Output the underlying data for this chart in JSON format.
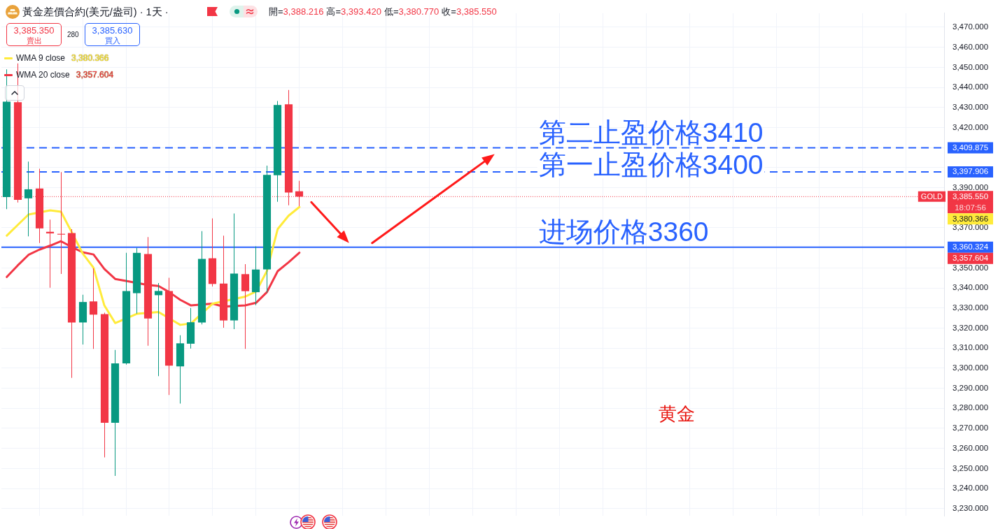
{
  "chart_data": {
    "type": "candlestick",
    "title": "黃金差價合約(美元/盎司) · 1天 ·",
    "subtitle": "開=3,388.216 高=3,393.420 低=3,380.770 收=3,385.550",
    "annotations": [
      "3,385.350",
      "賣出",
      "280",
      "3,385.630",
      "買入",
      "3,380.366",
      "3,357.604",
      "3,409.875",
      "3,397.906",
      "3,385.550",
      "18:07:56",
      "3,380.366",
      "3,360.324",
      "3,357.604",
      "黄金"
    ],
    "categories": [
      null,
      null,
      null,
      null,
      null,
      null,
      null,
      null,
      null,
      null,
      null,
      null,
      null,
      null,
      null,
      null,
      null,
      null,
      null,
      null,
      null,
      null,
      null,
      null,
      null,
      null,
      null,
      null,
      null,
      null,
      null,
      null,
      null,
      null,
      null,
      null,
      null,
      null,
      null,
      null,
      null,
      null,
      null,
      null,
      null,
      null,
      null,
      null,
      null,
      null,
      null,
      null,
      null,
      null,
      null,
      null,
      null,
      null,
      null,
      null,
      null,
      null,
      null,
      null,
      null,
      null,
      null,
      null,
      null,
      null,
      null,
      null,
      null,
      null,
      null,
      null,
      null,
      null,
      null,
      null,
      null,
      null,
      null,
      null,
      null,
      null,
      null
    ],
    "ohlc": [
      [
        3385.3,
        3449.0,
        3379.3,
        3432.9
      ],
      [
        3432.6,
        3452.0,
        3382.6,
        3383.9
      ],
      [
        3384.7,
        3403.0,
        3365.7,
        3389.2
      ],
      [
        3389.6,
        3399.4,
        3362.4,
        3369.7
      ],
      [
        3368.0,
        3374.1,
        3340.1,
        3367.2
      ],
      [
        3367.0,
        3397.8,
        3347.0,
        3366.6
      ],
      [
        3367.4,
        3369.3,
        3295.2,
        3322.8
      ],
      [
        3322.8,
        3336.6,
        3311.8,
        3333.0
      ],
      [
        3333.3,
        3349.8,
        3309.6,
        3326.7
      ],
      [
        3327.0,
        3327.7,
        3255.5,
        3272.8
      ],
      [
        3272.8,
        3309.1,
        3246.3,
        3302.4
      ],
      [
        3302.4,
        3357.5,
        3301.8,
        3338.5
      ],
      [
        3337.4,
        3360.0,
        3327.2,
        3357.5
      ],
      [
        3356.9,
        3365.4,
        3311.2,
        3324.8
      ],
      [
        3336.4,
        3342.5,
        3296.0,
        3338.5
      ],
      [
        3338.5,
        3345.1,
        3286.6,
        3301.3
      ],
      [
        3300.9,
        3316.4,
        3282.4,
        3312.4
      ],
      [
        3312.2,
        3330.0,
        3309.8,
        3322.9
      ],
      [
        3322.8,
        3368.3,
        3321.8,
        3354.5
      ],
      [
        3354.8,
        3374.7,
        3340.7,
        3342.0
      ],
      [
        3342.2,
        3366.1,
        3320.2,
        3323.8
      ],
      [
        3323.8,
        3377.1,
        3319.5,
        3347.2
      ],
      [
        3346.9,
        3351.9,
        3309.6,
        3338.4
      ],
      [
        3337.9,
        3360.8,
        3331.4,
        3349.2
      ],
      [
        3349.3,
        3401.0,
        3337.7,
        3396.4
      ],
      [
        3396.2,
        3433.2,
        3383.0,
        3431.2
      ],
      [
        3431.6,
        3438.7,
        3381.2,
        3387.6
      ],
      [
        3388.216,
        3393.42,
        3380.77,
        3385.55
      ],
      null,
      null,
      null,
      null,
      null,
      null,
      null,
      null,
      null,
      null,
      null,
      null,
      null,
      null,
      null,
      null,
      null,
      null,
      null,
      null,
      null,
      null,
      null,
      null,
      null,
      null,
      null,
      null,
      null,
      null,
      null,
      null,
      null,
      null,
      null,
      null,
      null,
      null,
      null,
      null,
      null,
      null,
      null,
      null,
      null,
      null,
      null,
      null,
      null,
      null,
      null,
      null,
      null,
      null,
      null,
      null,
      null,
      null,
      null
    ],
    "colors": [
      "#089981",
      "#f23645",
      "#089981",
      "#f23645",
      "#f23645",
      "#f23645",
      "#f23645",
      "#089981",
      "#f23645",
      "#f23645",
      "#089981",
      "#089981",
      "#089981",
      "#f23645",
      "#089981",
      "#f23645",
      "#089981",
      "#089981",
      "#089981",
      "#f23645",
      "#f23645",
      "#089981",
      "#f23645",
      "#089981",
      "#089981",
      "#089981",
      "#f23645",
      "#f23645",
      null,
      null,
      null,
      null,
      null,
      null,
      null,
      null,
      null,
      null,
      null,
      null,
      null,
      null,
      null,
      null,
      null,
      null,
      null,
      null,
      null,
      null,
      null,
      null,
      null,
      null,
      null,
      null,
      null,
      null,
      null,
      null,
      null,
      null,
      null,
      null,
      null,
      null,
      null,
      null,
      null,
      null,
      null,
      null,
      null,
      null,
      null,
      null,
      null,
      null,
      null,
      null,
      null,
      null,
      null,
      null,
      null,
      null,
      null
    ],
    "series": [
      {
        "name": "WMA 9 close",
        "type": "line",
        "color": "#ffeb3b",
        "values": [
          3366.1,
          3371.4,
          3376.6,
          null,
          3378.7,
          3378.0,
          3367.7,
          3357.2,
          3350.1,
          3331.3,
          3322.5,
          null,
          3327.1,
          null,
          3328.0,
          null,
          3321.6,
          3322.3,
          null,
          3332.2,
          null,
          null,
          3335.7,
          3338.2,
          3348.4,
          3369.4,
          3376.0,
          3380.366,
          null,
          null,
          null,
          null,
          null,
          null,
          null,
          null,
          null,
          null,
          null,
          null,
          null,
          null,
          null,
          null,
          null,
          null,
          null,
          null,
          null,
          null,
          null,
          null,
          null,
          null,
          null,
          null,
          null,
          null,
          null,
          null,
          null,
          null,
          null,
          null,
          null,
          null,
          null,
          null,
          null,
          null,
          null,
          null,
          null,
          null,
          null,
          null,
          null,
          null,
          null,
          null,
          null,
          null,
          null,
          null,
          null,
          null,
          null
        ]
      },
      {
        "name": "WMA 20 close",
        "type": "line",
        "color": "#f23645",
        "values": [
          3345.5,
          3351.2,
          3356.5,
          3359.1,
          3361.1,
          3363.3,
          3360.4,
          3357.8,
          3356.7,
          3349.5,
          3344.5,
          3343.5,
          null,
          3341.5,
          3341.0,
          3337.9,
          3334.1,
          3331.3,
          null,
          3332.2,
          3330.7,
          null,
          3331.3,
          3332.6,
          3337.9,
          3348.4,
          3352.8,
          3357.604,
          null,
          null,
          null,
          null,
          null,
          null,
          null,
          null,
          null,
          null,
          null,
          null,
          null,
          null,
          null,
          null,
          null,
          null,
          null,
          null,
          null,
          null,
          null,
          null,
          null,
          null,
          null,
          null,
          null,
          null,
          null,
          null,
          null,
          null,
          null,
          null,
          null,
          null,
          null,
          null,
          null,
          null,
          null,
          null,
          null,
          null,
          null,
          null,
          null,
          null,
          null,
          null,
          null,
          null,
          null,
          null,
          null,
          null,
          null
        ]
      }
    ],
    "ylim": [
      3226.4,
      3477.0
    ],
    "yticks": [
      {
        "value": 3230,
        "label": "3,230.000"
      },
      {
        "value": 3240,
        "label": "3,240.000"
      },
      {
        "value": 3250,
        "label": "3,250.000"
      },
      {
        "value": 3260,
        "label": "3,260.000"
      },
      {
        "value": 3270,
        "label": "3,270.000"
      },
      {
        "value": 3280,
        "label": "3,280.000"
      },
      {
        "value": 3290,
        "label": "3,290.000"
      },
      {
        "value": 3300,
        "label": "3,300.000"
      },
      {
        "value": 3310,
        "label": "3,310.000"
      },
      {
        "value": 3320,
        "label": "3,320.000"
      },
      {
        "value": 3330,
        "label": "3,330.000"
      },
      {
        "value": 3340,
        "label": "3,340.000"
      },
      {
        "value": 3350,
        "label": "3,350.000"
      },
      {
        "value": 3360,
        "label": null
      },
      {
        "value": 3370,
        "label": "3,370.000"
      },
      {
        "value": 3380,
        "label": null
      },
      {
        "value": 3390,
        "label": "3,390.000"
      },
      {
        "value": 3400,
        "label": null
      },
      {
        "value": 3410,
        "label": null
      },
      {
        "value": 3420,
        "label": "3,420.000"
      },
      {
        "value": 3430,
        "label": "3,430.000"
      },
      {
        "value": 3440,
        "label": "3,440.000"
      },
      {
        "value": 3450,
        "label": "3,450.000"
      },
      {
        "value": 3460,
        "label": "3,460.000"
      },
      {
        "value": 3470,
        "label": "3,470.000"
      }
    ],
    "ref_lines": [
      {
        "axis": "y",
        "value": 3409.875,
        "label": "第二止盈价格3410",
        "color": "#2962ff",
        "line_style": "dashed"
      },
      {
        "axis": "y",
        "value": 3397.906,
        "label": "第一止盈价格3400",
        "color": "#2962ff",
        "line_style": "dashed"
      },
      {
        "axis": "y",
        "value": 3360.324,
        "label": "进场价格3360",
        "color": "#2962ff",
        "line_style": "solid"
      },
      {
        "axis": "y",
        "value": 3385.55,
        "label": "GOLD",
        "color": "#f23645",
        "line_style": "dotted"
      }
    ],
    "grid": true,
    "legend": "top left"
  }
}
